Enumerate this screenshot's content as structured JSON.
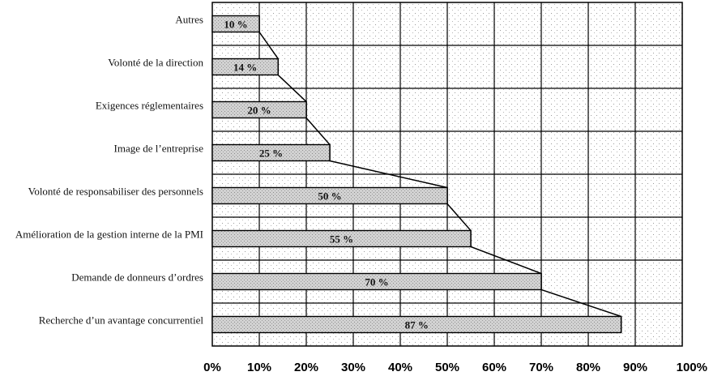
{
  "chart_data": {
    "type": "bar",
    "orientation": "horizontal",
    "categories": [
      "Autres",
      "Volonté de la direction",
      "Exigences réglementaires",
      "Image de l’entreprise",
      "Volonté de responsabiliser des personnels",
      "Amélioration de la gestion interne de la PMI",
      "Demande de donneurs d’ordres",
      "Recherche d’un avantage concurrentiel"
    ],
    "values": [
      10,
      14,
      20,
      25,
      50,
      55,
      70,
      87
    ],
    "data_labels": [
      "10 %",
      "14 %",
      "20 %",
      "25 %",
      "50 %",
      "55 %",
      "70 %",
      "87 %"
    ],
    "xlim": [
      0,
      100
    ],
    "x_ticks": [
      "0%",
      "10%",
      "20%",
      "30%",
      "40%",
      "50%",
      "60%",
      "70%",
      "80%",
      "90%",
      "100%"
    ],
    "grid": true,
    "connector_line": true,
    "colors": {
      "bar_fill": "#cfcfcf",
      "bar_stroke": "#000000",
      "plot_background": "#ffffff",
      "grid": "#000000"
    }
  }
}
